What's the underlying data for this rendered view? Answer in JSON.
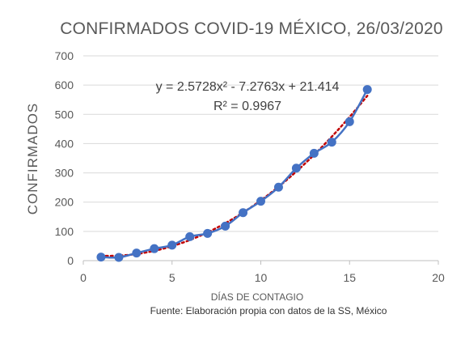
{
  "chart_data": {
    "type": "scatter",
    "title": "CONFIRMADOS COVID-19 MÉXICO, 26/03/2020",
    "xlabel": "DÍAS DE CONTAGIO",
    "ylabel": "CONFIRMADOS",
    "source": "Fuente: Elaboración propia con datos de la SS, México",
    "xlim": [
      0,
      20
    ],
    "ylim": [
      0,
      700
    ],
    "x_ticks": [
      "0",
      "5",
      "10",
      "15",
      "20"
    ],
    "y_ticks": [
      "0",
      "100",
      "200",
      "300",
      "400",
      "500",
      "600",
      "700"
    ],
    "grid": "horizontal",
    "legend": "none",
    "series": [
      {
        "x": [
          1,
          2,
          3,
          4,
          5,
          6,
          7,
          8,
          9,
          10,
          11,
          12,
          13,
          14,
          15,
          16
        ],
        "y": [
          12,
          11,
          26,
          41,
          53,
          82,
          93,
          118,
          164,
          203,
          251,
          316,
          367,
          405,
          475,
          585
        ],
        "color": "#4472C4"
      }
    ],
    "trendline": {
      "type": "polynomial",
      "order": 2,
      "coefficients": [
        2.5728,
        -7.2763,
        21.414
      ],
      "color": "#C00000",
      "style": "dotted",
      "equation": "y = 2.5728x² - 7.2763x + 21.414",
      "r_squared": "R² = 0.9967"
    }
  }
}
